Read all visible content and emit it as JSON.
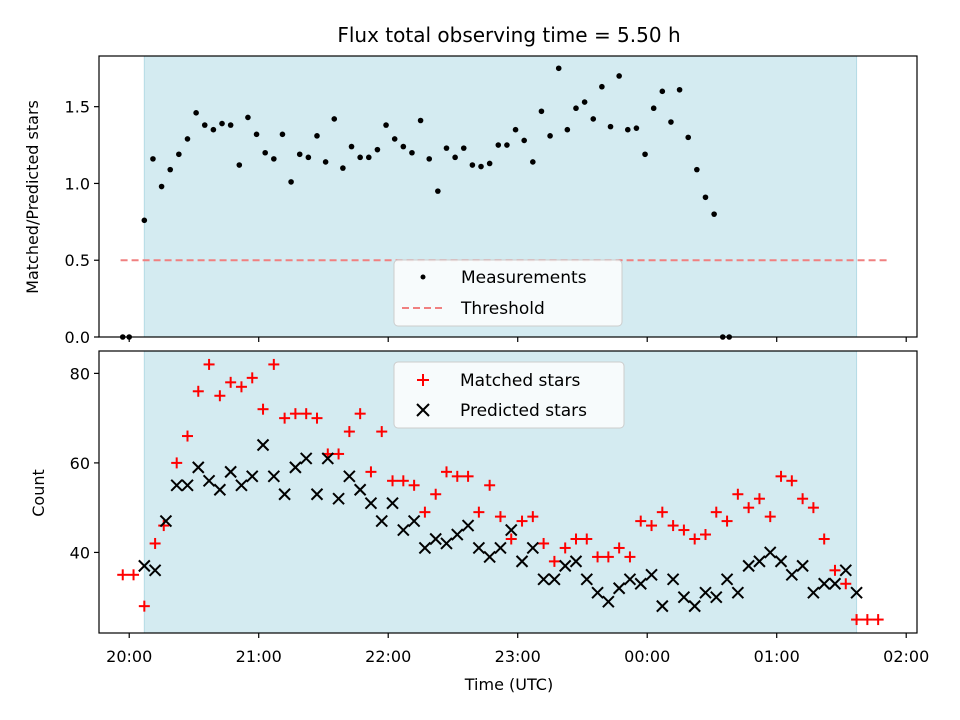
{
  "chart_data": [
    {
      "type": "scatter",
      "title": "Flux total observing time = 5.50 h",
      "xlabel": "",
      "ylabel": "Matched/Predicted stars",
      "xlim": [
        "19:46",
        "02:05"
      ],
      "ylim": [
        0,
        1.83
      ],
      "yticks": [
        "0.0",
        "0.5",
        "1.0",
        "1.5"
      ],
      "shaded_interval": [
        "20:07",
        "01:37"
      ],
      "grid": false,
      "legend_position": "lower center",
      "series": [
        {
          "name": "Measurements",
          "marker": "dot",
          "color": "#000000",
          "points": [
            [
              "19:57",
              0.0
            ],
            [
              "20:00",
              0.0
            ],
            [
              "20:07",
              0.76
            ],
            [
              "20:11",
              1.16
            ],
            [
              "20:15",
              0.98
            ],
            [
              "20:19",
              1.09
            ],
            [
              "20:23",
              1.19
            ],
            [
              "20:27",
              1.29
            ],
            [
              "20:31",
              1.46
            ],
            [
              "20:35",
              1.38
            ],
            [
              "20:39",
              1.35
            ],
            [
              "20:43",
              1.39
            ],
            [
              "20:47",
              1.38
            ],
            [
              "20:51",
              1.12
            ],
            [
              "20:55",
              1.43
            ],
            [
              "20:59",
              1.32
            ],
            [
              "21:03",
              1.2
            ],
            [
              "21:07",
              1.16
            ],
            [
              "21:11",
              1.32
            ],
            [
              "21:15",
              1.01
            ],
            [
              "21:19",
              1.19
            ],
            [
              "21:23",
              1.17
            ],
            [
              "21:27",
              1.31
            ],
            [
              "21:31",
              1.14
            ],
            [
              "21:35",
              1.42
            ],
            [
              "21:39",
              1.1
            ],
            [
              "21:43",
              1.24
            ],
            [
              "21:47",
              1.17
            ],
            [
              "21:51",
              1.17
            ],
            [
              "21:55",
              1.22
            ],
            [
              "21:59",
              1.38
            ],
            [
              "22:03",
              1.29
            ],
            [
              "22:07",
              1.24
            ],
            [
              "22:11",
              1.2
            ],
            [
              "22:15",
              1.41
            ],
            [
              "22:19",
              1.16
            ],
            [
              "22:23",
              0.95
            ],
            [
              "22:27",
              1.23
            ],
            [
              "22:31",
              1.17
            ],
            [
              "22:35",
              1.23
            ],
            [
              "22:39",
              1.12
            ],
            [
              "22:43",
              1.11
            ],
            [
              "22:47",
              1.13
            ],
            [
              "22:51",
              1.25
            ],
            [
              "22:55",
              1.25
            ],
            [
              "22:59",
              1.35
            ],
            [
              "23:03",
              1.28
            ],
            [
              "23:07",
              1.14
            ],
            [
              "23:11",
              1.47
            ],
            [
              "23:15",
              1.31
            ],
            [
              "23:19",
              1.75
            ],
            [
              "23:23",
              1.35
            ],
            [
              "23:27",
              1.49
            ],
            [
              "23:31",
              1.53
            ],
            [
              "23:35",
              1.42
            ],
            [
              "23:39",
              1.63
            ],
            [
              "23:43",
              1.37
            ],
            [
              "23:47",
              1.7
            ],
            [
              "23:51",
              1.35
            ],
            [
              "23:55",
              1.36
            ],
            [
              "23:59",
              1.19
            ],
            [
              "00:03",
              1.49
            ],
            [
              "00:07",
              1.6
            ],
            [
              "00:11",
              1.4
            ],
            [
              "00:15",
              1.61
            ],
            [
              "00:19",
              1.3
            ],
            [
              "00:23",
              1.09
            ],
            [
              "00:27",
              0.91
            ],
            [
              "00:31",
              0.8
            ],
            [
              "00:35",
              0.0
            ],
            [
              "00:38",
              0.0
            ]
          ]
        },
        {
          "name": "Threshold",
          "style": "dashed",
          "color": "#f08080",
          "points": [
            [
              "19:56",
              0.5
            ],
            [
              "01:52",
              0.5
            ]
          ]
        }
      ]
    },
    {
      "type": "scatter",
      "title": "",
      "xlabel": "Time (UTC)",
      "ylabel": "Count",
      "xlim": [
        "19:46",
        "02:05"
      ],
      "ylim": [
        22,
        85
      ],
      "yticks": [
        "40",
        "60",
        "80"
      ],
      "xticks": [
        "20:00",
        "21:00",
        "22:00",
        "23:00",
        "00:00",
        "01:00",
        "02:00"
      ],
      "shaded_interval": [
        "20:07",
        "01:37"
      ],
      "grid": false,
      "legend_position": "upper center",
      "series": [
        {
          "name": "Matched stars",
          "marker": "plus",
          "color": "#ff0000",
          "points": [
            [
              "19:57",
              35
            ],
            [
              "20:02",
              35
            ],
            [
              "20:07",
              28
            ],
            [
              "20:12",
              42
            ],
            [
              "20:16",
              46
            ],
            [
              "20:22",
              60
            ],
            [
              "20:27",
              66
            ],
            [
              "20:32",
              76
            ],
            [
              "20:37",
              82
            ],
            [
              "20:42",
              75
            ],
            [
              "20:47",
              78
            ],
            [
              "20:52",
              77
            ],
            [
              "20:57",
              79
            ],
            [
              "21:02",
              72
            ],
            [
              "21:07",
              82
            ],
            [
              "21:12",
              70
            ],
            [
              "21:17",
              71
            ],
            [
              "21:22",
              71
            ],
            [
              "21:27",
              70
            ],
            [
              "21:32",
              62
            ],
            [
              "21:37",
              62
            ],
            [
              "21:42",
              67
            ],
            [
              "21:47",
              71
            ],
            [
              "21:52",
              58
            ],
            [
              "21:57",
              67
            ],
            [
              "22:02",
              56
            ],
            [
              "22:07",
              56
            ],
            [
              "22:12",
              55
            ],
            [
              "22:17",
              49
            ],
            [
              "22:22",
              53
            ],
            [
              "22:27",
              58
            ],
            [
              "22:32",
              57
            ],
            [
              "22:37",
              57
            ],
            [
              "22:42",
              49
            ],
            [
              "22:47",
              55
            ],
            [
              "22:52",
              48
            ],
            [
              "22:57",
              43
            ],
            [
              "23:02",
              47
            ],
            [
              "23:07",
              48
            ],
            [
              "23:12",
              42
            ],
            [
              "23:17",
              38
            ],
            [
              "23:22",
              41
            ],
            [
              "23:27",
              43
            ],
            [
              "23:32",
              43
            ],
            [
              "23:37",
              39
            ],
            [
              "23:42",
              39
            ],
            [
              "23:47",
              41
            ],
            [
              "23:52",
              39
            ],
            [
              "23:57",
              47
            ],
            [
              "00:02",
              46
            ],
            [
              "00:07",
              49
            ],
            [
              "00:12",
              46
            ],
            [
              "00:17",
              45
            ],
            [
              "00:22",
              43
            ],
            [
              "00:27",
              44
            ],
            [
              "00:32",
              49
            ],
            [
              "00:37",
              47
            ],
            [
              "00:42",
              53
            ],
            [
              "00:47",
              50
            ],
            [
              "00:52",
              52
            ],
            [
              "00:57",
              48
            ],
            [
              "01:02",
              57
            ],
            [
              "01:07",
              56
            ],
            [
              "01:12",
              52
            ],
            [
              "01:17",
              50
            ],
            [
              "01:22",
              43
            ],
            [
              "01:27",
              36
            ],
            [
              "01:32",
              33
            ],
            [
              "01:37",
              25
            ],
            [
              "01:42",
              25
            ],
            [
              "01:47",
              25
            ]
          ]
        },
        {
          "name": "Predicted stars",
          "marker": "x",
          "color": "#000000",
          "points": [
            [
              "20:07",
              37
            ],
            [
              "20:12",
              36
            ],
            [
              "20:17",
              47
            ],
            [
              "20:22",
              55
            ],
            [
              "20:27",
              55
            ],
            [
              "20:32",
              59
            ],
            [
              "20:37",
              56
            ],
            [
              "20:42",
              54
            ],
            [
              "20:47",
              58
            ],
            [
              "20:52",
              55
            ],
            [
              "20:57",
              57
            ],
            [
              "21:02",
              64
            ],
            [
              "21:07",
              57
            ],
            [
              "21:12",
              53
            ],
            [
              "21:17",
              59
            ],
            [
              "21:22",
              61
            ],
            [
              "21:27",
              53
            ],
            [
              "21:32",
              61
            ],
            [
              "21:37",
              52
            ],
            [
              "21:42",
              57
            ],
            [
              "21:47",
              54
            ],
            [
              "21:52",
              51
            ],
            [
              "21:57",
              47
            ],
            [
              "22:02",
              51
            ],
            [
              "22:07",
              45
            ],
            [
              "22:12",
              47
            ],
            [
              "22:17",
              41
            ],
            [
              "22:22",
              43
            ],
            [
              "22:27",
              42
            ],
            [
              "22:32",
              44
            ],
            [
              "22:37",
              46
            ],
            [
              "22:42",
              41
            ],
            [
              "22:47",
              39
            ],
            [
              "22:52",
              41
            ],
            [
              "22:57",
              45
            ],
            [
              "23:02",
              38
            ],
            [
              "23:07",
              41
            ],
            [
              "23:12",
              34
            ],
            [
              "23:17",
              34
            ],
            [
              "23:22",
              37
            ],
            [
              "23:27",
              38
            ],
            [
              "23:32",
              34
            ],
            [
              "23:37",
              31
            ],
            [
              "23:42",
              29
            ],
            [
              "23:47",
              32
            ],
            [
              "23:52",
              34
            ],
            [
              "23:57",
              33
            ],
            [
              "00:02",
              35
            ],
            [
              "00:07",
              28
            ],
            [
              "00:12",
              34
            ],
            [
              "00:17",
              30
            ],
            [
              "00:22",
              28
            ],
            [
              "00:27",
              31
            ],
            [
              "00:32",
              30
            ],
            [
              "00:37",
              34
            ],
            [
              "00:42",
              31
            ],
            [
              "00:47",
              37
            ],
            [
              "00:52",
              38
            ],
            [
              "00:57",
              40
            ],
            [
              "01:02",
              38
            ],
            [
              "01:07",
              35
            ],
            [
              "01:12",
              37
            ],
            [
              "01:17",
              31
            ],
            [
              "01:22",
              33
            ],
            [
              "01:27",
              33
            ],
            [
              "01:32",
              36
            ],
            [
              "01:37",
              31
            ]
          ]
        }
      ]
    }
  ],
  "colors": {
    "shade": "#d4ebf1",
    "shade_edge": "#b5dbe5",
    "threshold": "#f08080",
    "matched": "#ff0000",
    "predicted": "#000000",
    "measurement": "#000000"
  }
}
